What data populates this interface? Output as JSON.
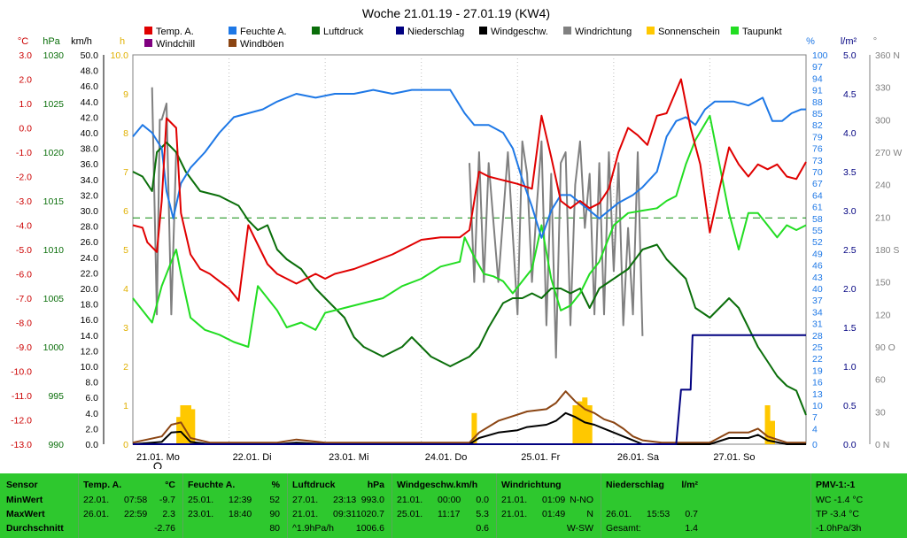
{
  "chart_data": {
    "type": "line",
    "title": "Woche 21.01.19 - 27.01.19 (KW4)",
    "legend": {
      "placement": "top",
      "entries": [
        {
          "name": "Temp. A.",
          "color": "#e00000"
        },
        {
          "name": "Feuchte A.",
          "color": "#1e78e6"
        },
        {
          "name": "Luftdruck",
          "color": "#0a6e0a"
        },
        {
          "name": "Niederschlag",
          "color": "#000080"
        },
        {
          "name": "Windgeschw.",
          "color": "#000000"
        },
        {
          "name": "Windrichtung",
          "color": "#808080"
        },
        {
          "name": "Sonnenschein",
          "color": "#ffc800"
        },
        {
          "name": "Taupunkt",
          "color": "#22dd22"
        },
        {
          "name": "Windchill",
          "color": "#800080"
        },
        {
          "name": "Windböen",
          "color": "#8b4513"
        }
      ]
    },
    "axes": {
      "temp": {
        "label": "°C",
        "color": "#cc0000",
        "min": -13,
        "max": 3,
        "ticks": [
          "3.0",
          "2.0",
          "1.0",
          "0.0",
          "-1.0",
          "-2.0",
          "-3.0",
          "-4.0",
          "-5.0",
          "-6.0",
          "-7.0",
          "-8.0",
          "-9.0",
          "-10.0",
          "-11.0",
          "-12.0",
          "-13.0"
        ]
      },
      "pressure": {
        "label": "hPa",
        "color": "#0a6e0a",
        "min": 990,
        "max": 1030,
        "ticks": [
          "1030",
          "1025",
          "1020",
          "1015",
          "1010",
          "1005",
          "1000",
          "995",
          "990"
        ]
      },
      "wind": {
        "label": "km/h",
        "color": "#000000",
        "min": 0,
        "max": 50,
        "ticks": [
          "50.0",
          "48.0",
          "46.0",
          "44.0",
          "42.0",
          "40.0",
          "38.0",
          "36.0",
          "34.0",
          "32.0",
          "30.0",
          "28.0",
          "26.0",
          "24.0",
          "22.0",
          "20.0",
          "18.0",
          "16.0",
          "14.0",
          "12.0",
          "10.0",
          "8.0",
          "6.0",
          "4.0",
          "2.0",
          "0.0"
        ]
      },
      "sun": {
        "label": "h",
        "color": "#e0b000",
        "min": 0,
        "max": 10,
        "ticks": [
          "10.0",
          "9",
          "8",
          "7",
          "6",
          "5",
          "4",
          "3",
          "2",
          "1",
          "0"
        ]
      },
      "humidity": {
        "label": "%",
        "color": "#1e78e6",
        "min": 0,
        "max": 100,
        "ticks": [
          "100",
          "97",
          "94",
          "91",
          "88",
          "85",
          "82",
          "79",
          "76",
          "73",
          "70",
          "67",
          "64",
          "61",
          "58",
          "55",
          "52",
          "49",
          "46",
          "43",
          "40",
          "37",
          "34",
          "31",
          "28",
          "25",
          "22",
          "19",
          "16",
          "13",
          "10",
          "7",
          "4",
          "0"
        ]
      },
      "rain": {
        "label": "l/m²",
        "color": "#000080",
        "min": 0,
        "max": 5,
        "ticks": [
          "5.0",
          "4.5",
          "4.0",
          "3.5",
          "3.0",
          "2.5",
          "2.0",
          "1.5",
          "1.0",
          "0.5",
          "0.0"
        ]
      },
      "direction": {
        "label": "°",
        "color": "#808080",
        "min": 0,
        "max": 360,
        "ticks": [
          "360 N",
          "330",
          "300",
          "270 W",
          "240",
          "210",
          "180 S",
          "150",
          "120",
          "90 O",
          "60",
          "30",
          "0 N"
        ]
      }
    },
    "x_days": [
      "21.01. Mo",
      "22.01. Di",
      "23.01. Mi",
      "24.01. Do",
      "25.01. Fr",
      "26.01. Sa",
      "27.01. So"
    ],
    "series": [
      {
        "name": "Temp. A.",
        "unit": "°C",
        "x": [
          0,
          0.1,
          0.15,
          0.25,
          0.3,
          0.35,
          0.45,
          0.5,
          0.6,
          0.7,
          0.8,
          0.9,
          1,
          1.1,
          1.2,
          1.3,
          1.4,
          1.5,
          1.7,
          1.9,
          2.0,
          2.1,
          2.3,
          2.5,
          2.7,
          2.9,
          3.0,
          3.2,
          3.4,
          3.5,
          3.6,
          3.7,
          3.8,
          3.9,
          4.0,
          4.15,
          4.25,
          4.35,
          4.45,
          4.55,
          4.65,
          4.75,
          4.85,
          4.95,
          5.05,
          5.15,
          5.25,
          5.35,
          5.45,
          5.55,
          5.7,
          5.8,
          5.9,
          6.0,
          6.1,
          6.2,
          6.3,
          6.4,
          6.5,
          6.6,
          6.7,
          6.8,
          6.9,
          7.0
        ],
        "y": [
          -4.0,
          -4.1,
          -4.7,
          -5.1,
          -3.0,
          0.4,
          0.0,
          -3.5,
          -5.2,
          -5.8,
          -6.0,
          -6.3,
          -6.6,
          -7.1,
          -4.0,
          -4.8,
          -5.6,
          -6.0,
          -6.4,
          -6.0,
          -6.2,
          -6.0,
          -5.8,
          -5.5,
          -5.2,
          -4.8,
          -4.6,
          -4.5,
          -4.5,
          -4.2,
          -1.8,
          -2.0,
          -2.1,
          -2.2,
          -2.3,
          -2.5,
          0.5,
          -1.2,
          -3.0,
          -3.3,
          -3.0,
          -3.3,
          -3.1,
          -2.5,
          -1.0,
          0.0,
          -0.3,
          -0.7,
          0.5,
          0.6,
          2.0,
          0.0,
          -1.5,
          -4.3,
          -2.5,
          -0.8,
          -1.5,
          -2.0,
          -1.5,
          -1.7,
          -1.5,
          -2.0,
          -2.1,
          -1.4
        ]
      },
      {
        "name": "Feuchte A.",
        "unit": "%",
        "x": [
          0,
          0.1,
          0.2,
          0.3,
          0.35,
          0.42,
          0.5,
          0.6,
          0.75,
          0.9,
          1.05,
          1.2,
          1.35,
          1.5,
          1.7,
          1.9,
          2.1,
          2.3,
          2.5,
          2.7,
          2.9,
          3.1,
          3.3,
          3.45,
          3.55,
          3.7,
          3.85,
          3.95,
          4.05,
          4.15,
          4.25,
          4.35,
          4.45,
          4.55,
          4.65,
          4.75,
          4.85,
          4.95,
          5.05,
          5.2,
          5.3,
          5.45,
          5.55,
          5.65,
          5.75,
          5.85,
          5.95,
          6.05,
          6.15,
          6.25,
          6.4,
          6.55,
          6.65,
          6.75,
          6.85,
          6.95,
          7.0
        ],
        "y": [
          79,
          82,
          80,
          76,
          65,
          58,
          67,
          71,
          75,
          80,
          84,
          85,
          86,
          88,
          90,
          89,
          90,
          90,
          91,
          90,
          91,
          91,
          91,
          85,
          82,
          82,
          80,
          76,
          68,
          61,
          53,
          60,
          64,
          64,
          62,
          60,
          58,
          60,
          62,
          64,
          66,
          70,
          79,
          83,
          84,
          82,
          86,
          88,
          88,
          88,
          87,
          89,
          83,
          83,
          85,
          86,
          86
        ]
      },
      {
        "name": "Luftdruck",
        "unit": "hPa",
        "x": [
          0,
          0.1,
          0.2,
          0.25,
          0.35,
          0.45,
          0.55,
          0.7,
          0.9,
          1.1,
          1.2,
          1.3,
          1.4,
          1.5,
          1.6,
          1.75,
          1.9,
          2.0,
          2.2,
          2.3,
          2.4,
          2.5,
          2.6,
          2.8,
          2.9,
          3.1,
          3.3,
          3.4,
          3.5,
          3.6,
          3.7,
          3.85,
          3.95,
          4.05,
          4.15,
          4.25,
          4.35,
          4.45,
          4.55,
          4.65,
          4.75,
          4.85,
          5.0,
          5.15,
          5.3,
          5.45,
          5.55,
          5.65,
          5.75,
          5.85,
          6.0,
          6.1,
          6.2,
          6.3,
          6.4,
          6.5,
          6.6,
          6.7,
          6.8,
          6.9,
          7.0
        ],
        "y": [
          1018,
          1017.5,
          1016,
          1020,
          1021,
          1020,
          1018,
          1016,
          1015.5,
          1014.5,
          1013,
          1012,
          1012.5,
          1010,
          1009,
          1008,
          1006,
          1005,
          1003,
          1001,
          1000,
          999.5,
          999,
          1000,
          1001,
          999,
          998,
          998.5,
          999,
          1000,
          1002,
          1004.5,
          1005,
          1005,
          1005.5,
          1005,
          1006,
          1006,
          1005.5,
          1006,
          1004,
          1006,
          1007,
          1008,
          1010,
          1010.5,
          1009,
          1008,
          1007,
          1004,
          1003,
          1004,
          1005,
          1004,
          1002,
          1000,
          998.5,
          997,
          996,
          995.5,
          993
        ]
      },
      {
        "name": "Taupunkt",
        "unit": "°C",
        "x": [
          0,
          0.1,
          0.2,
          0.3,
          0.4,
          0.45,
          0.5,
          0.6,
          0.75,
          0.9,
          1.05,
          1.2,
          1.3,
          1.4,
          1.5,
          1.6,
          1.75,
          1.9,
          2.0,
          2.2,
          2.4,
          2.6,
          2.8,
          3.0,
          3.2,
          3.4,
          3.45,
          3.55,
          3.65,
          3.75,
          3.85,
          3.95,
          4.05,
          4.15,
          4.25,
          4.35,
          4.45,
          4.55,
          4.65,
          4.75,
          4.85,
          5.0,
          5.15,
          5.3,
          5.45,
          5.55,
          5.65,
          5.75,
          5.85,
          6.0,
          6.1,
          6.2,
          6.3,
          6.4,
          6.5,
          6.6,
          6.7,
          6.8,
          6.9,
          7.0
        ],
        "y": [
          -7.0,
          -7.5,
          -8.0,
          -6.5,
          -5.5,
          -5.0,
          -6.0,
          -7.8,
          -8.3,
          -8.5,
          -8.8,
          -9.0,
          -6.5,
          -7.0,
          -7.5,
          -8.2,
          -8.0,
          -8.3,
          -7.6,
          -7.4,
          -7.2,
          -7.0,
          -6.5,
          -6.2,
          -5.7,
          -5.5,
          -4.5,
          -5.3,
          -6.0,
          -6.1,
          -6.3,
          -6.8,
          -6.3,
          -5.8,
          -4.0,
          -6.2,
          -7.5,
          -7.3,
          -6.8,
          -6.0,
          -5.5,
          -4.0,
          -3.5,
          -3.4,
          -3.3,
          -3.0,
          -2.8,
          -1.5,
          -0.5,
          0.5,
          -1.5,
          -3.5,
          -5.0,
          -3.5,
          -3.5,
          -4.0,
          -4.5,
          -4.0,
          -4.2,
          -4.0
        ]
      },
      {
        "name": "Windgeschw.",
        "unit": "km/h",
        "x": [
          0,
          0.3,
          0.4,
          0.5,
          0.6,
          0.8,
          1.5,
          1.7,
          2.0,
          2.5,
          3.0,
          3.5,
          3.6,
          3.8,
          4.0,
          4.1,
          4.3,
          4.4,
          4.5,
          4.6,
          4.7,
          4.8,
          4.9,
          5.0,
          5.1,
          5.2,
          5.3,
          5.5,
          5.8,
          6.0,
          6.2,
          6.4,
          6.5,
          6.6,
          6.8,
          7.0
        ],
        "y": [
          0,
          0.3,
          1.5,
          1.6,
          0.3,
          0,
          0,
          0.2,
          0,
          0,
          0,
          0,
          0.8,
          1.5,
          1.8,
          2.2,
          2.5,
          3.0,
          4.0,
          3.5,
          2.8,
          2.5,
          2.0,
          1.5,
          1.0,
          0.5,
          0,
          0,
          0,
          0,
          0.8,
          0.8,
          1.2,
          0.5,
          0,
          0
        ]
      },
      {
        "name": "Windböen",
        "unit": "km/h",
        "x": [
          0,
          0.3,
          0.4,
          0.5,
          0.6,
          0.8,
          1.5,
          1.7,
          2.0,
          2.5,
          3.0,
          3.5,
          3.6,
          3.8,
          4.0,
          4.1,
          4.3,
          4.4,
          4.5,
          4.6,
          4.7,
          4.8,
          4.9,
          5.0,
          5.1,
          5.2,
          5.3,
          5.5,
          5.8,
          6.0,
          6.2,
          6.4,
          6.5,
          6.6,
          6.8,
          7.0
        ],
        "y": [
          0.2,
          1.0,
          2.5,
          2.8,
          0.8,
          0.2,
          0.2,
          0.6,
          0.2,
          0.2,
          0.2,
          0.2,
          1.5,
          3.0,
          3.8,
          4.2,
          4.5,
          5.3,
          6.8,
          5.5,
          4.5,
          4.0,
          3.2,
          2.8,
          2.0,
          1.0,
          0.5,
          0.2,
          0.2,
          0.2,
          1.5,
          1.5,
          2.0,
          1.0,
          0.2,
          0.2
        ]
      },
      {
        "name": "Windrichtung",
        "unit": "°",
        "x": [
          0,
          0.2,
          0.25,
          0.28,
          0.3,
          0.35,
          0.4,
          0.45,
          0.5,
          3.45,
          3.5,
          3.55,
          3.6,
          3.65,
          3.7,
          3.8,
          3.9,
          4.0,
          4.05,
          4.1,
          4.15,
          4.2,
          4.25,
          4.3,
          4.35,
          4.4,
          4.45,
          4.5,
          4.55,
          4.6,
          4.65,
          4.7,
          4.75,
          4.8,
          4.85,
          4.9,
          4.95,
          5.0,
          5.05,
          5.1,
          5.15,
          5.2,
          5.25,
          5.3,
          5.35,
          6.6,
          6.65
        ],
        "y": [
          null,
          330,
          120,
          300,
          300,
          315,
          120,
          270,
          null,
          null,
          260,
          150,
          270,
          150,
          260,
          150,
          270,
          120,
          280,
          250,
          150,
          220,
          280,
          110,
          250,
          80,
          260,
          270,
          110,
          240,
          280,
          200,
          250,
          120,
          260,
          120,
          270,
          160,
          260,
          110,
          200,
          120,
          270,
          100,
          null,
          null,
          125
        ]
      },
      {
        "name": "Niederschlag",
        "unit": "l/m²",
        "x": [
          0,
          5.65,
          5.7,
          5.72,
          5.8,
          5.82,
          5.9,
          7.0
        ],
        "y": [
          0,
          0,
          0.7,
          0.7,
          0.7,
          1.4,
          1.4,
          1.4
        ]
      },
      {
        "name": "Sonnenschein",
        "unit": "h",
        "bars": [
          [
            0.48,
            0.7
          ],
          [
            0.52,
            1.0
          ],
          [
            0.55,
            1.0
          ],
          [
            0.58,
            1.0
          ],
          [
            0.62,
            0.9
          ],
          [
            3.55,
            0.8
          ],
          [
            4.6,
            1.0
          ],
          [
            4.65,
            1.1
          ],
          [
            4.7,
            1.2
          ],
          [
            4.75,
            1.0
          ],
          [
            6.6,
            1.0
          ],
          [
            6.65,
            0.6
          ]
        ]
      }
    ]
  },
  "stats": {
    "sensor": {
      "title": "Sensor",
      "rows": [
        "MinWert",
        "MaxWert",
        "Durchschnitt"
      ]
    },
    "temp": {
      "title": "Temp. A.",
      "unit": "°C",
      "rows": [
        [
          "22.01.",
          "07:58",
          "-9.7"
        ],
        [
          "26.01.",
          "22:59",
          "2.3"
        ],
        [
          "",
          "",
          "-2.76"
        ]
      ]
    },
    "humidity": {
      "title": "Feuchte A.",
      "unit": "%",
      "rows": [
        [
          "25.01.",
          "12:39",
          "52"
        ],
        [
          "23.01.",
          "18:40",
          "90"
        ],
        [
          "",
          "",
          "80"
        ]
      ]
    },
    "pressure": {
      "title": "Luftdruck",
      "unit": "hPa",
      "rows": [
        [
          "27.01.",
          "23:13",
          "993.0"
        ],
        [
          "21.01.",
          "09:31",
          "1020.7"
        ],
        [
          "^1.9hPa/h",
          "",
          "1006.6"
        ]
      ]
    },
    "wind": {
      "title": "Windgeschw.km/h",
      "unit": "",
      "rows": [
        [
          "21.01.",
          "00:00",
          "0.0"
        ],
        [
          "25.01.",
          "11:17",
          "5.3"
        ],
        [
          "",
          "",
          "0.6"
        ]
      ]
    },
    "direction": {
      "title": "Windrichtung",
      "unit": "",
      "rows": [
        [
          "21.01.",
          "01:09",
          "N-NO"
        ],
        [
          "21.01.",
          "01:49",
          "N"
        ],
        [
          "",
          "",
          "W-SW"
        ]
      ]
    },
    "rain": {
      "title": "Niederschlag",
      "unit": "l/m²",
      "rows": [
        [
          "",
          "",
          ""
        ],
        [
          "26.01.",
          "15:53",
          "0.7"
        ],
        [
          "Gesamt:",
          "",
          "1.4"
        ]
      ]
    },
    "pmv": {
      "title": "PMV-1:-1",
      "rows": [
        "WC -1.4 °C",
        "TP -3.4 °C",
        "-1.0hPa/3h"
      ]
    }
  }
}
